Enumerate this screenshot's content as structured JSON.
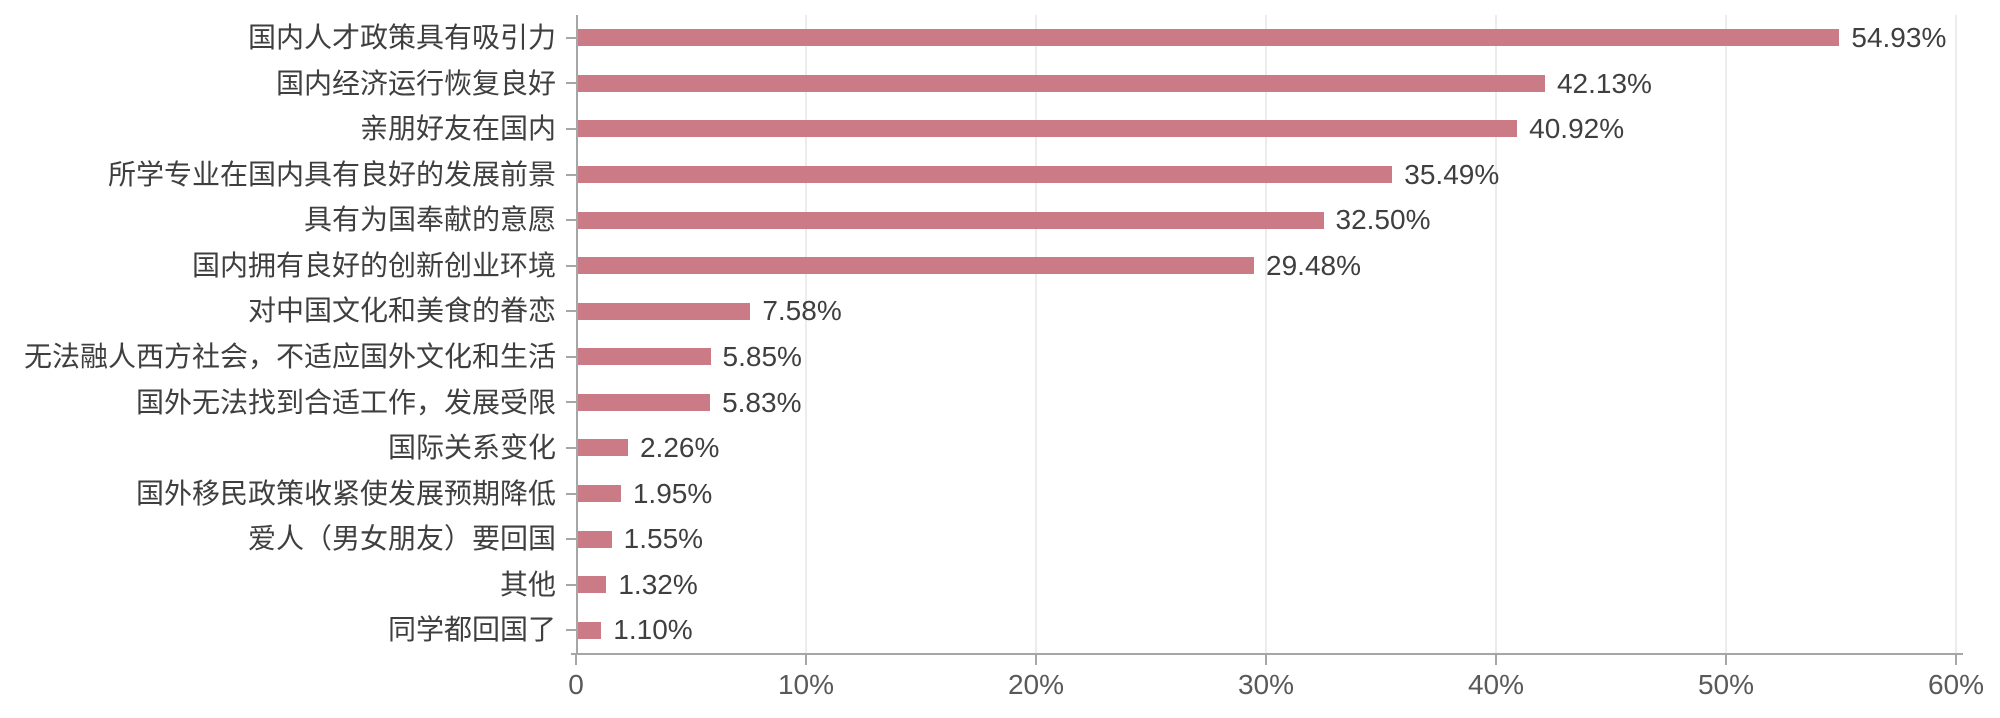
{
  "chart_data": {
    "type": "bar",
    "orientation": "horizontal",
    "title": "",
    "xlabel": "",
    "ylabel": "",
    "categories": [
      "国内人才政策具有吸引力",
      "国内经济运行恢复良好",
      "亲朋好友在国内",
      "所学专业在国内具有良好的发展前景",
      "具有为国奉献的意愿",
      "国内拥有良好的创新创业环境",
      "对中国文化和美食的眷恋",
      "无法融人西方社会，不适应国外文化和生活",
      "国外无法找到合适工作，发展受限",
      "国际关系变化",
      "国外移民政策收紧使发展预期降低",
      "爱人（男女朋友）要回国",
      "其他",
      "同学都回国了"
    ],
    "values": [
      54.93,
      42.13,
      40.92,
      35.49,
      32.5,
      29.48,
      7.58,
      5.85,
      5.83,
      2.26,
      1.95,
      1.55,
      1.32,
      1.1
    ],
    "value_labels": [
      "54.93%",
      "42.13%",
      "40.92%",
      "35.49%",
      "32.50%",
      "29.48%",
      "7.58%",
      "5.85%",
      "5.83%",
      "2.26%",
      "1.95%",
      "1.55%",
      "1.32%",
      "1.10%"
    ],
    "xlim": [
      0,
      60
    ],
    "xticks": [
      0,
      10,
      20,
      30,
      40,
      50,
      60
    ],
    "xtick_labels": [
      "0",
      "10%",
      "20%",
      "30%",
      "40%",
      "50%",
      "60%"
    ],
    "grid": "vertical",
    "legend_position": "none",
    "colors": {
      "bar": "#cb7b86",
      "axis": "#a6a6a6",
      "gridline": "#ececec",
      "label_text": "#3f3f3f",
      "tick_text": "#595959",
      "background": "#ffffff"
    }
  }
}
